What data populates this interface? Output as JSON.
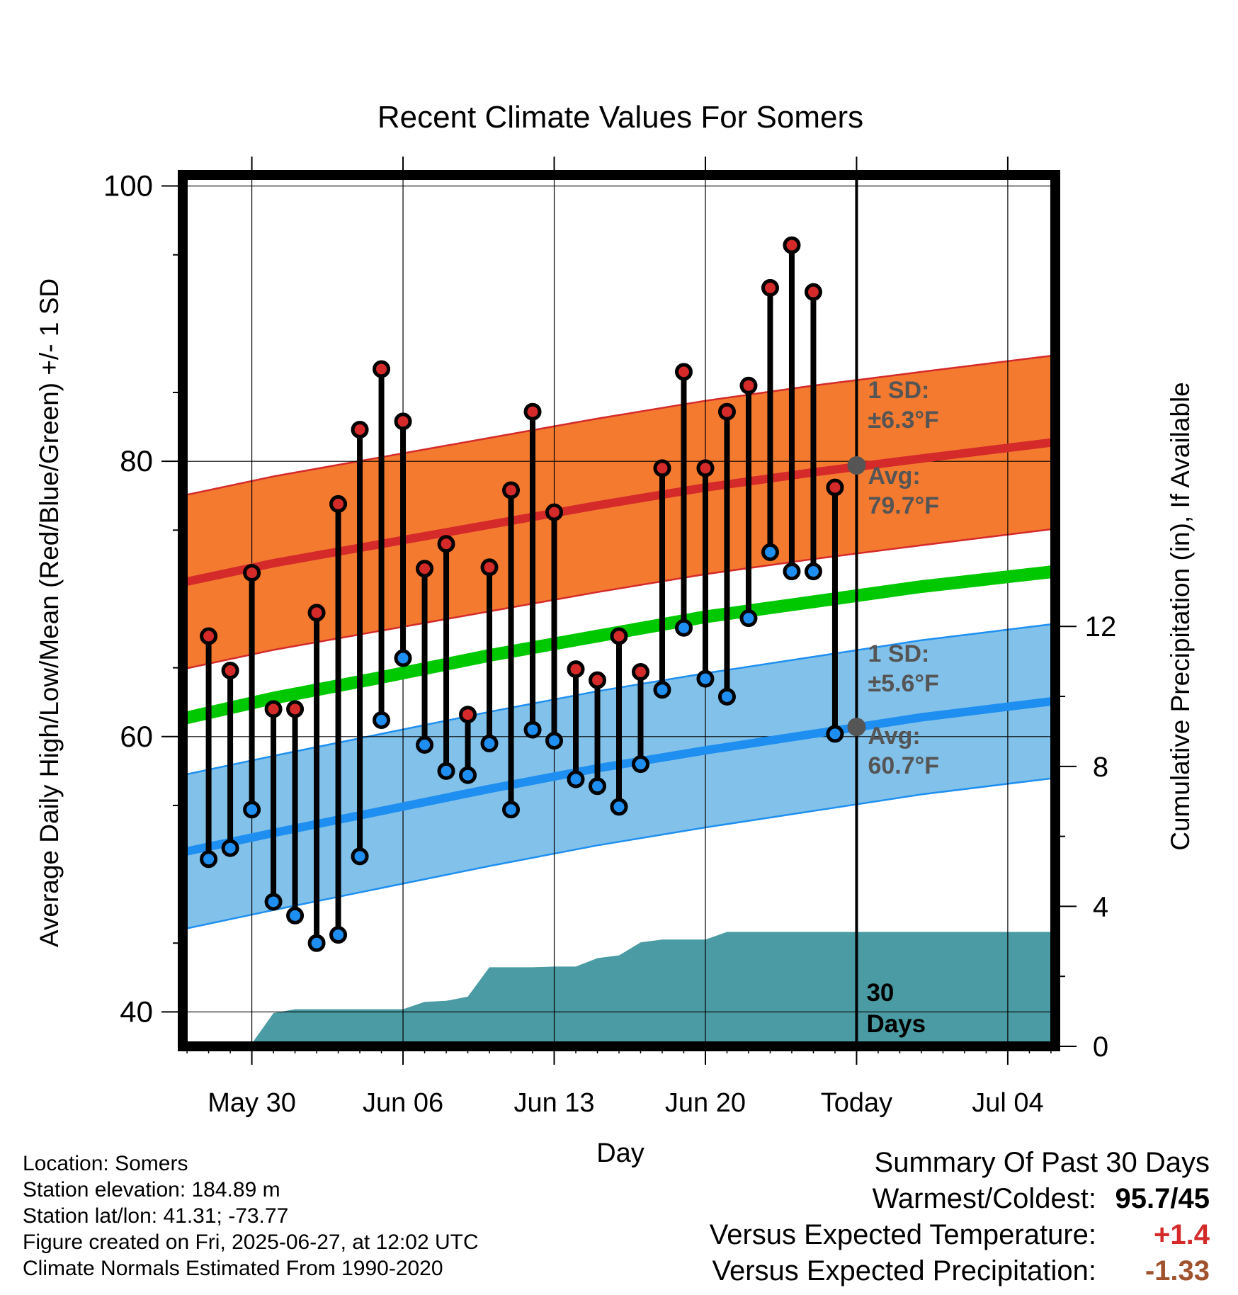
{
  "chart_data": {
    "type": "line",
    "title": "Recent Climate Values For Somers",
    "xlabel": "Day",
    "ylabel_left": "Average Daily High/Low/Mean (Red/Blue/Green) +/- 1 SD",
    "ylabel_right": "Cumulative Precipitation (in), If Available",
    "ylim_left": [
      37.5,
      100.8
    ],
    "yticks_left": [
      40,
      60,
      80,
      100
    ],
    "ylim_right": [
      0,
      24.9
    ],
    "yticks_right": [
      0,
      4,
      8,
      12
    ],
    "x_ticks": [
      "May 30",
      "Jun 06",
      "Jun 13",
      "Jun 20",
      "Today",
      "Jul 04"
    ],
    "x_tick_days": [
      4,
      11,
      18,
      25,
      32,
      39
    ],
    "x_range_days": [
      0.8,
      41.2
    ],
    "grid": true,
    "today_day": 32,
    "days_label": "30\nDays",
    "normal_high": {
      "sd_label": "1 SD:\n±6.3°F",
      "avg_label": "Avg:\n79.7°F",
      "x_days": [
        0.8,
        5,
        10,
        15,
        20,
        25,
        30,
        35,
        41.2
      ],
      "avg": [
        71.2,
        72.6,
        74.0,
        75.4,
        76.8,
        78.1,
        79.2,
        80.2,
        81.4
      ],
      "sd": 6.3,
      "color_line": "#d42a2a",
      "color_band": "#f47a30"
    },
    "normal_low": {
      "sd_label": "1 SD:\n±5.6°F",
      "avg_label": "Avg:\n60.7°F",
      "x_days": [
        0.8,
        5,
        10,
        15,
        20,
        25,
        30,
        35,
        41.2
      ],
      "avg": [
        51.6,
        53.0,
        54.6,
        56.2,
        57.7,
        59.0,
        60.2,
        61.4,
        62.6
      ],
      "sd": 5.6,
      "color_line": "#1e8ff0",
      "color_band": "#82c2ea"
    },
    "normal_mean": {
      "x_days": [
        0.8,
        5,
        10,
        15,
        20,
        25,
        30,
        35,
        41.2
      ],
      "values": [
        61.3,
        62.8,
        64.3,
        65.9,
        67.3,
        68.7,
        69.8,
        70.9,
        72.0
      ],
      "color": "#00c800"
    },
    "daily_highs": {
      "name": "High",
      "color": "#d42a2a",
      "values": [
        67.3,
        64.8,
        71.9,
        62.0,
        62.0,
        69.0,
        76.9,
        82.3,
        86.7,
        82.9,
        72.2,
        74.0,
        61.6,
        72.3,
        77.9,
        83.6,
        76.3,
        64.9,
        64.1,
        67.3,
        64.7,
        79.5,
        86.5,
        79.5,
        83.6,
        85.5,
        92.6,
        95.7,
        92.3,
        78.1
      ],
      "x_days": [
        2,
        3,
        4,
        5,
        6,
        7,
        8,
        9,
        10,
        11,
        12,
        13,
        14,
        15,
        16,
        17,
        18,
        19,
        20,
        21,
        22,
        23,
        24,
        25,
        26,
        27,
        28,
        29,
        30,
        31
      ]
    },
    "daily_lows": {
      "name": "Low",
      "color": "#1e8ff0",
      "values": [
        51.1,
        51.9,
        54.7,
        48.0,
        47.0,
        45.0,
        45.6,
        51.3,
        61.2,
        65.7,
        59.4,
        57.5,
        57.2,
        59.5,
        54.7,
        60.5,
        59.7,
        56.9,
        56.4,
        54.9,
        58.0,
        63.4,
        67.9,
        64.2,
        62.9,
        68.6,
        73.4,
        72.0,
        72.0,
        60.2
      ],
      "x_days": [
        2,
        3,
        4,
        5,
        6,
        7,
        8,
        9,
        10,
        11,
        12,
        13,
        14,
        15,
        16,
        17,
        18,
        19,
        20,
        21,
        22,
        23,
        24,
        25,
        26,
        27,
        28,
        29,
        30,
        31
      ]
    },
    "precipitation": {
      "name": "Cumulative Precipitation",
      "color": "#4a9ba3",
      "x_days": [
        1,
        2,
        3,
        4,
        5,
        6,
        7,
        8,
        9,
        10,
        11,
        12,
        13,
        14,
        15,
        16,
        17,
        18,
        19,
        20,
        21,
        22,
        23,
        24,
        25,
        26,
        27,
        28,
        29,
        30,
        31,
        32,
        33,
        41.2
      ],
      "values": [
        0.0,
        0.05,
        0.07,
        0.08,
        0.95,
        1.06,
        1.06,
        1.06,
        1.06,
        1.06,
        1.06,
        1.27,
        1.3,
        1.42,
        2.26,
        2.26,
        2.26,
        2.28,
        2.28,
        2.52,
        2.6,
        2.97,
        3.05,
        3.05,
        3.05,
        3.27,
        3.27,
        3.27,
        3.27,
        3.27,
        3.27,
        3.27,
        3.27,
        3.27
      ]
    }
  },
  "footer": {
    "location": "Location: Somers",
    "elevation": "Station elevation: 184.89 m",
    "latlon": "Station lat/lon: 41.31; -73.77",
    "created": "Figure created on Fri, 2025-06-27, at 12:02 UTC",
    "normals": "Climate Normals Estimated From 1990-2020"
  },
  "summary": {
    "title": "Summary Of Past 30 Days",
    "warmest_label": "Warmest/Coldest:",
    "warmest_value": "95.7/45",
    "temp_label": "Versus Expected Temperature:",
    "temp_value": "+1.4",
    "temp_color": "#d42a2a",
    "precip_label": "Versus Expected Precipitation:",
    "precip_value": "-1.33",
    "precip_color": "#a0522d"
  }
}
